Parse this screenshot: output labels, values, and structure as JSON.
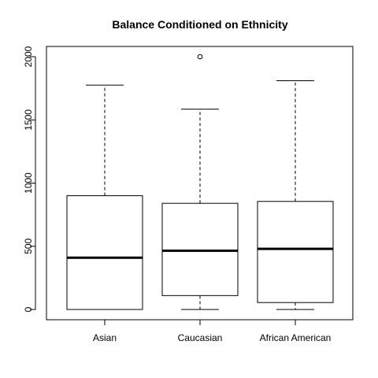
{
  "chart_data": {
    "type": "boxplot",
    "title": "Balance Conditioned on Ethnicity",
    "xlabel": "",
    "ylabel": "",
    "ylim": [
      0,
      2000
    ],
    "yticks": [
      0,
      500,
      1000,
      1500,
      2000
    ],
    "grid": false,
    "categories": [
      "Asian",
      "Caucasian",
      "African American"
    ],
    "boxes": [
      {
        "category": "Asian",
        "whisker_low": 0,
        "q1": 0,
        "median": 410,
        "q3": 900,
        "whisker_high": 1775,
        "outliers": []
      },
      {
        "category": "Caucasian",
        "whisker_low": 0,
        "q1": 110,
        "median": 465,
        "q3": 840,
        "whisker_high": 1585,
        "outliers": [
          2000
        ]
      },
      {
        "category": "African American",
        "whisker_low": 0,
        "q1": 55,
        "median": 480,
        "q3": 855,
        "whisker_high": 1810,
        "outliers": []
      }
    ]
  }
}
